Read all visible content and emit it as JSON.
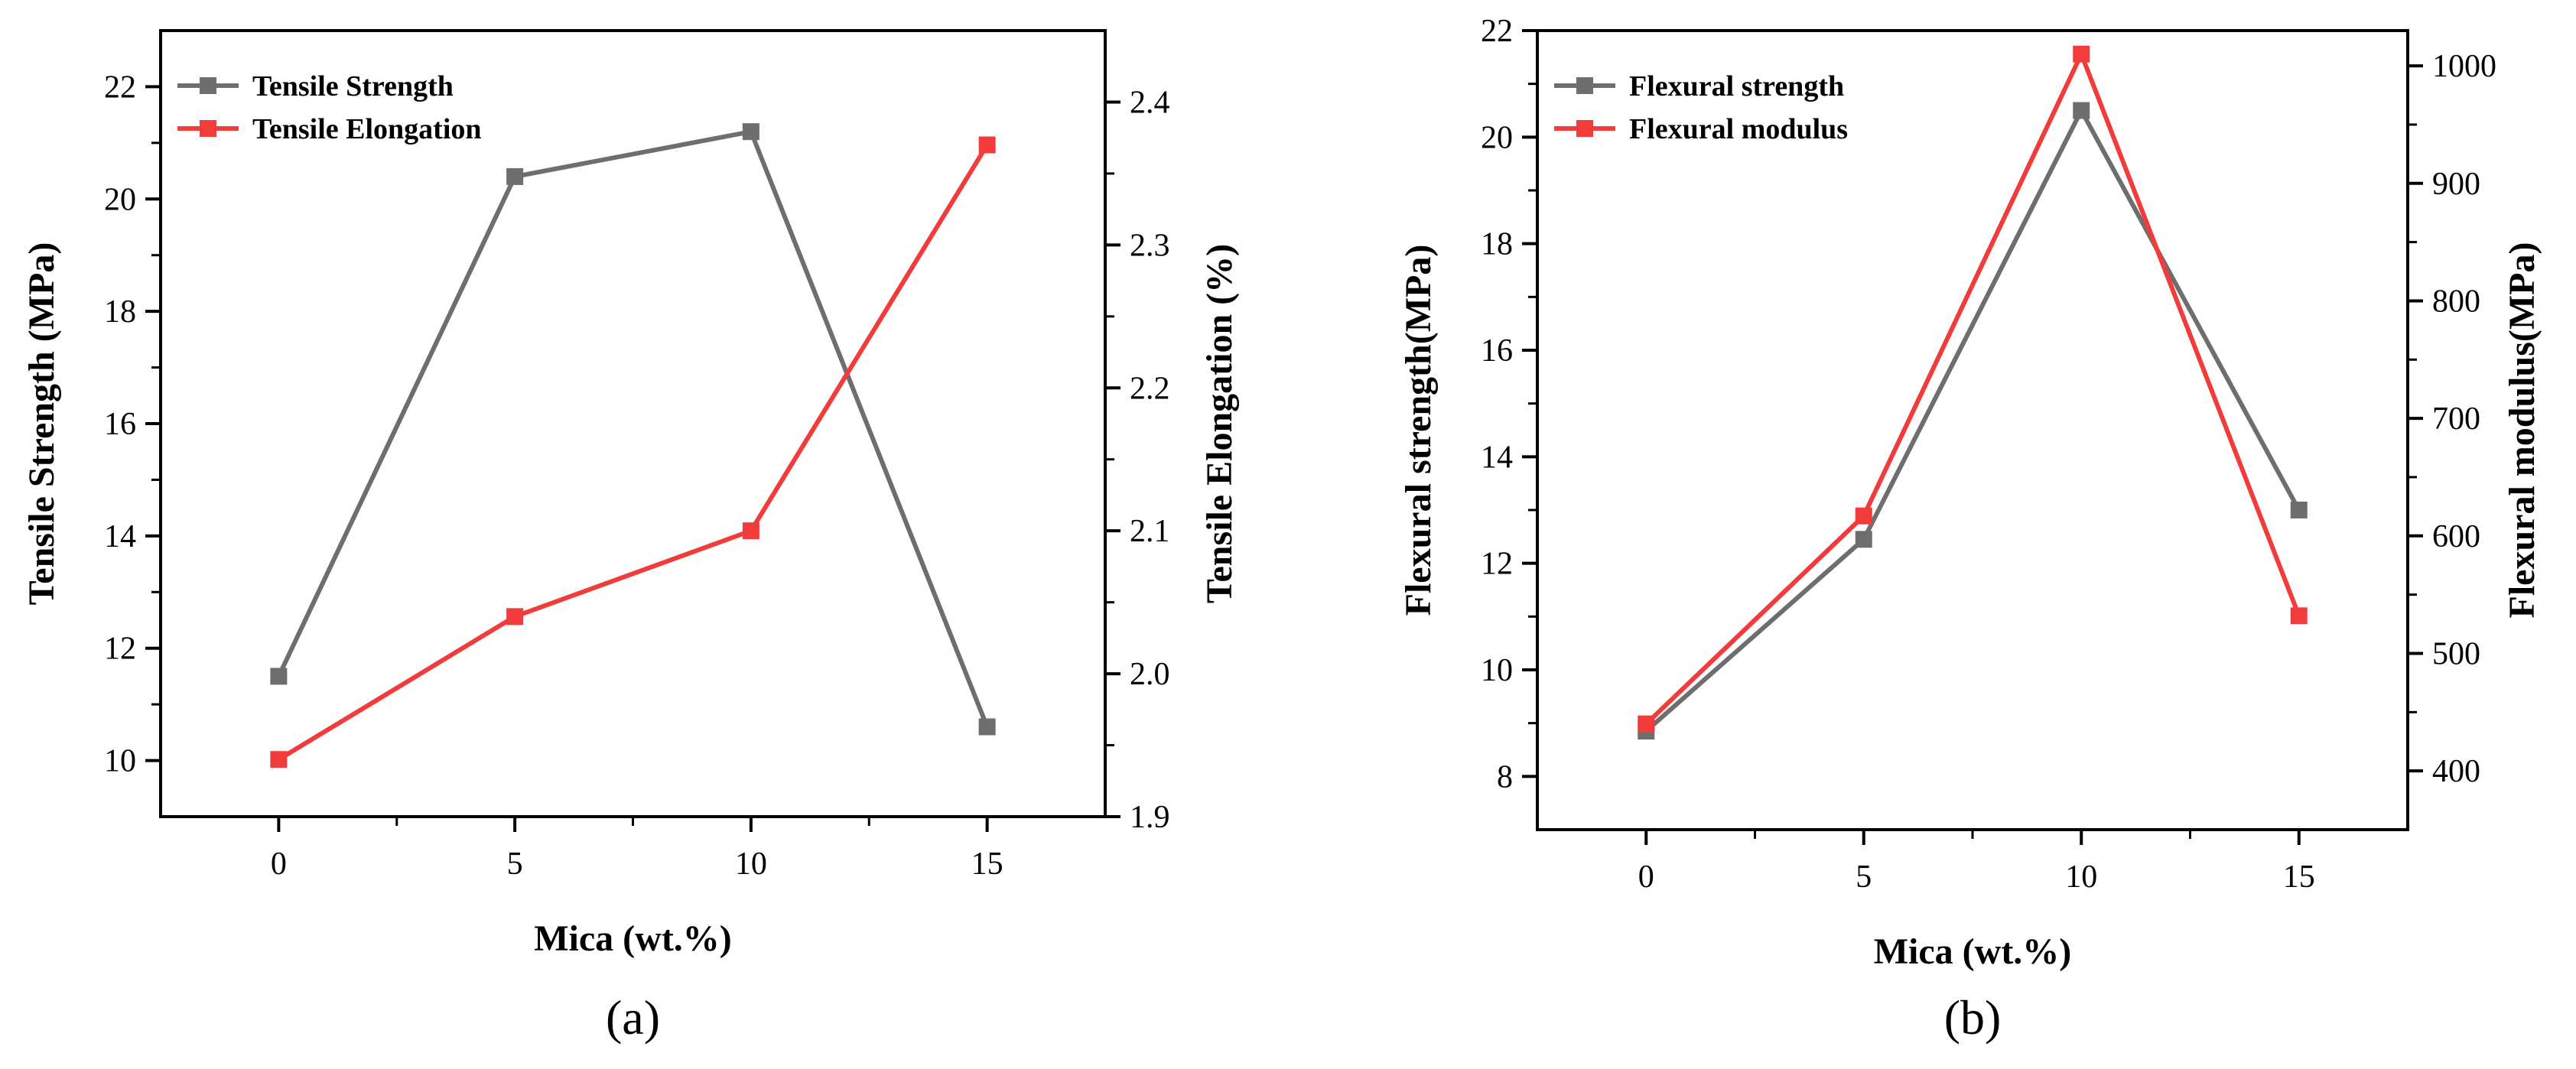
{
  "colors": {
    "gray": "#6e6e6e",
    "red": "#f23c3c",
    "axis": "#000000"
  },
  "chart_data": [
    {
      "type": "line",
      "panel_label": "(a)",
      "xlabel": "Mica (wt.%)",
      "ylabel_left": "Tensile Strength (MPa)",
      "ylabel_right": "Tensile Elongation (%)",
      "xlim": [
        -2.5,
        17.5
      ],
      "ylim_left": [
        9,
        23
      ],
      "ylim_right": [
        1.9,
        2.45
      ],
      "xticks": [
        0,
        5,
        10,
        15
      ],
      "yticks_left": [
        10,
        12,
        14,
        16,
        18,
        20,
        22
      ],
      "yticks_right": [
        1.9,
        2.0,
        2.1,
        2.2,
        2.3,
        2.4
      ],
      "legend_position": "top-left",
      "x": [
        0,
        5,
        10,
        15
      ],
      "series": [
        {
          "name": "Tensile Strength",
          "axis": "left",
          "color": "#6e6e6e",
          "values": [
            11.5,
            20.4,
            21.2,
            10.6
          ]
        },
        {
          "name": "Tensile Elongation",
          "axis": "right",
          "color": "#f23c3c",
          "values": [
            1.94,
            2.04,
            2.1,
            2.37
          ]
        }
      ]
    },
    {
      "type": "line",
      "panel_label": "(b)",
      "xlabel": "Mica (wt.%)",
      "ylabel_left": "Flexural strength(MPa)",
      "ylabel_right": "Flexural modulus(MPa)",
      "xlim": [
        -2.5,
        17.5
      ],
      "ylim_left": [
        7,
        22
      ],
      "ylim_right": [
        350,
        1030
      ],
      "xticks": [
        0,
        5,
        10,
        15
      ],
      "yticks_left": [
        8,
        10,
        12,
        14,
        16,
        18,
        20,
        22
      ],
      "yticks_right": [
        400,
        500,
        600,
        700,
        800,
        900,
        1000
      ],
      "legend_position": "top-left",
      "x": [
        0,
        5,
        10,
        15
      ],
      "series": [
        {
          "name": "Flexural strength",
          "axis": "left",
          "color": "#6e6e6e",
          "values": [
            8.85,
            12.45,
            20.5,
            13.0
          ]
        },
        {
          "name": "Flexural modulus",
          "axis": "right",
          "color": "#f23c3c",
          "values": [
            440,
            617,
            1010,
            532
          ]
        }
      ]
    }
  ]
}
